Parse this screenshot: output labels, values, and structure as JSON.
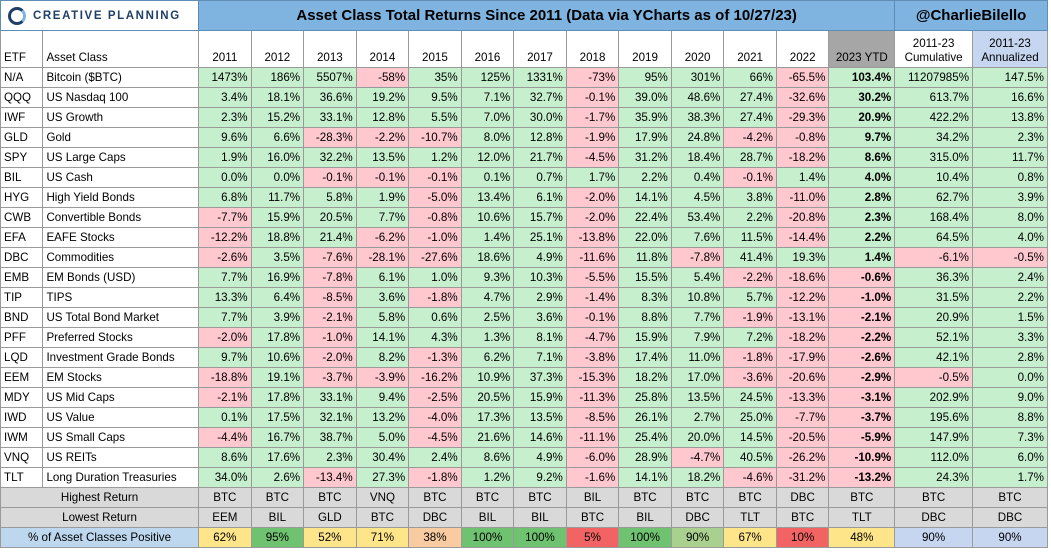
{
  "header": {
    "logo_text": "CREATIVE PLANNING",
    "title": "Asset Class Total Returns Since 2011 (Data via YCharts as of 10/27/23)",
    "handle": "@CharlieBilello"
  },
  "columns": {
    "etf": "ETF",
    "asset_class": "Asset Class",
    "years": [
      "2011",
      "2012",
      "2013",
      "2014",
      "2015",
      "2016",
      "2017",
      "2018",
      "2019",
      "2020",
      "2021",
      "2022",
      "2023 YTD"
    ],
    "cumulative": [
      "2011-23",
      "Cumulative"
    ],
    "annualized": [
      "2011-23",
      "Annualized"
    ]
  },
  "rows": [
    {
      "etf": "N/A",
      "name": "Bitcoin ($BTC)",
      "values": [
        "1473%",
        "186%",
        "5507%",
        "-58%",
        "35%",
        "125%",
        "1331%",
        "-73%",
        "95%",
        "301%",
        "66%",
        "-65.5%",
        "103.4%"
      ],
      "cum": "11207985%",
      "ann": "147.5%"
    },
    {
      "etf": "QQQ",
      "name": "US Nasdaq 100",
      "values": [
        "3.4%",
        "18.1%",
        "36.6%",
        "19.2%",
        "9.5%",
        "7.1%",
        "32.7%",
        "-0.1%",
        "39.0%",
        "48.6%",
        "27.4%",
        "-32.6%",
        "30.2%"
      ],
      "cum": "613.7%",
      "ann": "16.6%"
    },
    {
      "etf": "IWF",
      "name": "US Growth",
      "values": [
        "2.3%",
        "15.2%",
        "33.1%",
        "12.8%",
        "5.5%",
        "7.0%",
        "30.0%",
        "-1.7%",
        "35.9%",
        "38.3%",
        "27.4%",
        "-29.3%",
        "20.9%"
      ],
      "cum": "422.2%",
      "ann": "13.8%"
    },
    {
      "etf": "GLD",
      "name": "Gold",
      "values": [
        "9.6%",
        "6.6%",
        "-28.3%",
        "-2.2%",
        "-10.7%",
        "8.0%",
        "12.8%",
        "-1.9%",
        "17.9%",
        "24.8%",
        "-4.2%",
        "-0.8%",
        "9.7%"
      ],
      "cum": "34.2%",
      "ann": "2.3%"
    },
    {
      "etf": "SPY",
      "name": "US Large Caps",
      "values": [
        "1.9%",
        "16.0%",
        "32.2%",
        "13.5%",
        "1.2%",
        "12.0%",
        "21.7%",
        "-4.5%",
        "31.2%",
        "18.4%",
        "28.7%",
        "-18.2%",
        "8.6%"
      ],
      "cum": "315.0%",
      "ann": "11.7%"
    },
    {
      "etf": "BIL",
      "name": "US Cash",
      "values": [
        "0.0%",
        "0.0%",
        "-0.1%",
        "-0.1%",
        "-0.1%",
        "0.1%",
        "0.7%",
        "1.7%",
        "2.2%",
        "0.4%",
        "-0.1%",
        "1.4%",
        "4.0%"
      ],
      "cum": "10.4%",
      "ann": "0.8%"
    },
    {
      "etf": "HYG",
      "name": "High Yield Bonds",
      "values": [
        "6.8%",
        "11.7%",
        "5.8%",
        "1.9%",
        "-5.0%",
        "13.4%",
        "6.1%",
        "-2.0%",
        "14.1%",
        "4.5%",
        "3.8%",
        "-11.0%",
        "2.8%"
      ],
      "cum": "62.7%",
      "ann": "3.9%"
    },
    {
      "etf": "CWB",
      "name": "Convertible Bonds",
      "values": [
        "-7.7%",
        "15.9%",
        "20.5%",
        "7.7%",
        "-0.8%",
        "10.6%",
        "15.7%",
        "-2.0%",
        "22.4%",
        "53.4%",
        "2.2%",
        "-20.8%",
        "2.3%"
      ],
      "cum": "168.4%",
      "ann": "8.0%"
    },
    {
      "etf": "EFA",
      "name": "EAFE Stocks",
      "values": [
        "-12.2%",
        "18.8%",
        "21.4%",
        "-6.2%",
        "-1.0%",
        "1.4%",
        "25.1%",
        "-13.8%",
        "22.0%",
        "7.6%",
        "11.5%",
        "-14.4%",
        "2.2%"
      ],
      "cum": "64.5%",
      "ann": "4.0%"
    },
    {
      "etf": "DBC",
      "name": "Commodities",
      "values": [
        "-2.6%",
        "3.5%",
        "-7.6%",
        "-28.1%",
        "-27.6%",
        "18.6%",
        "4.9%",
        "-11.6%",
        "11.8%",
        "-7.8%",
        "41.4%",
        "19.3%",
        "1.4%"
      ],
      "cum": "-6.1%",
      "ann": "-0.5%"
    },
    {
      "etf": "EMB",
      "name": "EM Bonds (USD)",
      "values": [
        "7.7%",
        "16.9%",
        "-7.8%",
        "6.1%",
        "1.0%",
        "9.3%",
        "10.3%",
        "-5.5%",
        "15.5%",
        "5.4%",
        "-2.2%",
        "-18.6%",
        "-0.6%"
      ],
      "cum": "36.3%",
      "ann": "2.4%"
    },
    {
      "etf": "TIP",
      "name": "TIPS",
      "values": [
        "13.3%",
        "6.4%",
        "-8.5%",
        "3.6%",
        "-1.8%",
        "4.7%",
        "2.9%",
        "-1.4%",
        "8.3%",
        "10.8%",
        "5.7%",
        "-12.2%",
        "-1.0%"
      ],
      "cum": "31.5%",
      "ann": "2.2%"
    },
    {
      "etf": "BND",
      "name": "US Total Bond Market",
      "values": [
        "7.7%",
        "3.9%",
        "-2.1%",
        "5.8%",
        "0.6%",
        "2.5%",
        "3.6%",
        "-0.1%",
        "8.8%",
        "7.7%",
        "-1.9%",
        "-13.1%",
        "-2.1%"
      ],
      "cum": "20.9%",
      "ann": "1.5%"
    },
    {
      "etf": "PFF",
      "name": "Preferred Stocks",
      "values": [
        "-2.0%",
        "17.8%",
        "-1.0%",
        "14.1%",
        "4.3%",
        "1.3%",
        "8.1%",
        "-4.7%",
        "15.9%",
        "7.9%",
        "7.2%",
        "-18.2%",
        "-2.2%"
      ],
      "cum": "52.1%",
      "ann": "3.3%"
    },
    {
      "etf": "LQD",
      "name": "Investment Grade Bonds",
      "values": [
        "9.7%",
        "10.6%",
        "-2.0%",
        "8.2%",
        "-1.3%",
        "6.2%",
        "7.1%",
        "-3.8%",
        "17.4%",
        "11.0%",
        "-1.8%",
        "-17.9%",
        "-2.6%"
      ],
      "cum": "42.1%",
      "ann": "2.8%"
    },
    {
      "etf": "EEM",
      "name": "EM Stocks",
      "values": [
        "-18.8%",
        "19.1%",
        "-3.7%",
        "-3.9%",
        "-16.2%",
        "10.9%",
        "37.3%",
        "-15.3%",
        "18.2%",
        "17.0%",
        "-3.6%",
        "-20.6%",
        "-2.9%"
      ],
      "cum": "-0.5%",
      "ann": "0.0%"
    },
    {
      "etf": "MDY",
      "name": "US Mid Caps",
      "values": [
        "-2.1%",
        "17.8%",
        "33.1%",
        "9.4%",
        "-2.5%",
        "20.5%",
        "15.9%",
        "-11.3%",
        "25.8%",
        "13.5%",
        "24.5%",
        "-13.3%",
        "-3.1%"
      ],
      "cum": "202.9%",
      "ann": "9.0%"
    },
    {
      "etf": "IWD",
      "name": "US Value",
      "values": [
        "0.1%",
        "17.5%",
        "32.1%",
        "13.2%",
        "-4.0%",
        "17.3%",
        "13.5%",
        "-8.5%",
        "26.1%",
        "2.7%",
        "25.0%",
        "-7.7%",
        "-3.7%"
      ],
      "cum": "195.6%",
      "ann": "8.8%"
    },
    {
      "etf": "IWM",
      "name": "US Small Caps",
      "values": [
        "-4.4%",
        "16.7%",
        "38.7%",
        "5.0%",
        "-4.5%",
        "21.6%",
        "14.6%",
        "-11.1%",
        "25.4%",
        "20.0%",
        "14.5%",
        "-20.5%",
        "-5.9%"
      ],
      "cum": "147.9%",
      "ann": "7.3%"
    },
    {
      "etf": "VNQ",
      "name": "US REITs",
      "values": [
        "8.6%",
        "17.6%",
        "2.3%",
        "30.4%",
        "2.4%",
        "8.6%",
        "4.9%",
        "-6.0%",
        "28.9%",
        "-4.7%",
        "40.5%",
        "-26.2%",
        "-10.9%"
      ],
      "cum": "112.0%",
      "ann": "6.0%"
    },
    {
      "etf": "TLT",
      "name": "Long Duration Treasuries",
      "values": [
        "34.0%",
        "2.6%",
        "-13.4%",
        "27.3%",
        "-1.8%",
        "1.2%",
        "9.2%",
        "-1.6%",
        "14.1%",
        "18.2%",
        "-4.6%",
        "-31.2%",
        "-13.2%"
      ],
      "cum": "24.3%",
      "ann": "1.7%"
    }
  ],
  "summary": {
    "highest": {
      "label": "Highest Return",
      "values": [
        "BTC",
        "BTC",
        "BTC",
        "VNQ",
        "BTC",
        "BTC",
        "BTC",
        "BIL",
        "BTC",
        "BTC",
        "BTC",
        "DBC",
        "BTC"
      ],
      "cum": "BTC",
      "ann": "BTC"
    },
    "lowest": {
      "label": "Lowest Return",
      "values": [
        "EEM",
        "BIL",
        "GLD",
        "BTC",
        "DBC",
        "BIL",
        "BIL",
        "BTC",
        "BIL",
        "DBC",
        "TLT",
        "BTC",
        "TLT"
      ],
      "cum": "DBC",
      "ann": "DBC"
    },
    "positive": {
      "label": "% of Asset Classes Positive",
      "values": [
        "62%",
        "95%",
        "52%",
        "71%",
        "38%",
        "100%",
        "100%",
        "5%",
        "100%",
        "90%",
        "67%",
        "10%",
        "48%"
      ],
      "cum": "90%",
      "ann": "90%"
    }
  },
  "colors": {
    "title_bg": "#7fb4e1",
    "positive_bg": "#c6efce",
    "negative_bg": "#ffc7ce",
    "summary_bg": "#d9d9d9",
    "ytd_header_bg": "#a6a6a6"
  }
}
